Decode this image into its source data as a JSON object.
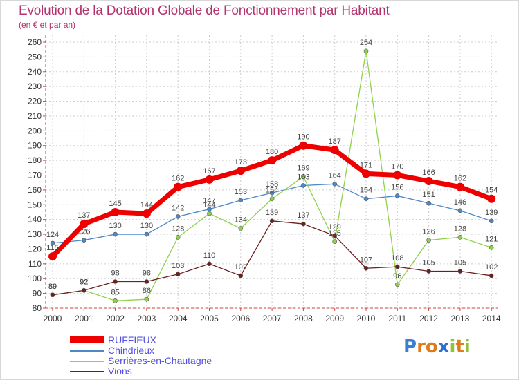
{
  "title": "Evolution de la Dotation Globale de Fonctionnement par Habitant",
  "subtitle": "(en € et par an)",
  "logo": {
    "text": "Proxiti",
    "letters": [
      "P",
      "r",
      "o",
      "x",
      "i",
      "t",
      "i"
    ],
    "colors": [
      "#3a7fd0",
      "#e07a1a",
      "#e07a1a",
      "#2f6fd0",
      "#8fc23a",
      "#e07a1a",
      "#8fc23a"
    ]
  },
  "chart_data": {
    "type": "line",
    "title": "Evolution de la Dotation Globale de Fonctionnement par Habitant",
    "subtitle": "(en € et par an)",
    "x": [
      "2000",
      "2001",
      "2002",
      "2003",
      "2004",
      "2005",
      "2006",
      "2007",
      "2008",
      "2009",
      "2010",
      "2011",
      "2012",
      "2013",
      "2014"
    ],
    "ylim": [
      80,
      260
    ],
    "yticks": [
      80,
      90,
      100,
      110,
      120,
      130,
      140,
      150,
      160,
      170,
      180,
      190,
      200,
      210,
      220,
      230,
      240,
      250,
      260
    ],
    "grid": true,
    "legend_position": "bottom-left",
    "series": [
      {
        "name": "RUFFIEUX",
        "color": "#ee0000",
        "values": [
          115,
          137,
          145,
          144,
          162,
          167,
          173,
          180,
          190,
          187,
          171,
          170,
          166,
          162,
          154
        ]
      },
      {
        "name": "Chindrieux",
        "color": "#4d88c8",
        "values": [
          124,
          126,
          130,
          130,
          142,
          147,
          153,
          158,
          163,
          164,
          154,
          156,
          151,
          146,
          139
        ]
      },
      {
        "name": "Serrières-en-Chautagne",
        "color": "#8ed24a",
        "values": [
          89,
          92,
          85,
          86,
          128,
          144,
          134,
          154,
          169,
          125,
          254,
          96,
          126,
          128,
          121
        ]
      },
      {
        "name": "Vions",
        "color": "#6b1f1f",
        "values": [
          89,
          92,
          98,
          98,
          103,
          110,
          102,
          139,
          137,
          129,
          107,
          108,
          105,
          105,
          102
        ]
      }
    ]
  }
}
